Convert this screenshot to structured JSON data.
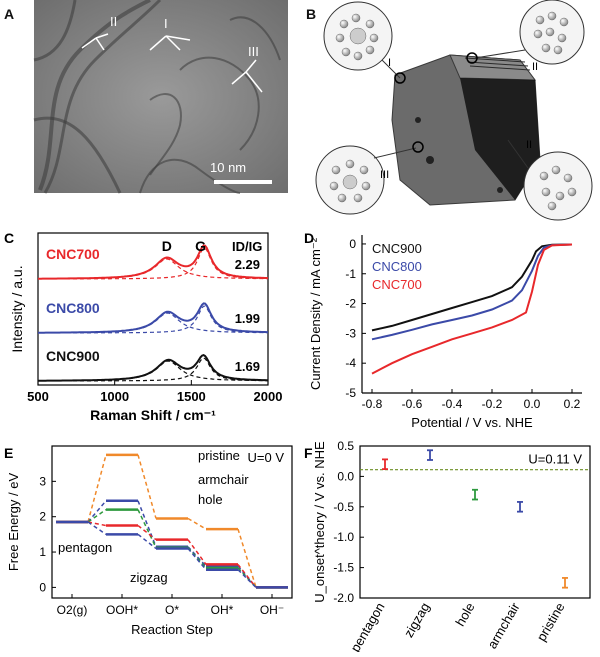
{
  "panels": {
    "A": {
      "label": "A",
      "annotations": [
        "II",
        "I",
        "III"
      ],
      "scale_bar": "10 nm"
    },
    "B": {
      "label": "B",
      "annotations": [
        "I",
        "II",
        "II",
        "III"
      ]
    }
  },
  "chart_data": [
    {
      "panel": "C",
      "type": "line",
      "xlabel": "Raman Shift / cm⁻¹",
      "ylabel": "Intensity / a.u.",
      "xlim": [
        500,
        2000
      ],
      "xticks": [
        500,
        1000,
        1500,
        2000
      ],
      "peak_labels": [
        "D",
        "G"
      ],
      "ratio_label": "ID/IG",
      "series": [
        {
          "name": "CNC700",
          "color": "#e8282b",
          "ratio": "2.29",
          "D_peak": 1340,
          "G_peak": 1585,
          "D_amp": 1.0,
          "G_amp": 1.55
        },
        {
          "name": "CNC800",
          "color": "#3b4aa8",
          "ratio": "1.99",
          "D_peak": 1345,
          "G_peak": 1585,
          "D_amp": 1.0,
          "G_amp": 1.35
        },
        {
          "name": "CNC900",
          "color": "#111111",
          "ratio": "1.69",
          "D_peak": 1350,
          "G_peak": 1580,
          "D_amp": 1.0,
          "G_amp": 1.15
        }
      ]
    },
    {
      "panel": "D",
      "type": "line",
      "xlabel": "Potential / V vs. NHE",
      "ylabel": "Current Density / mA cm⁻²",
      "xlim": [
        -0.85,
        0.25
      ],
      "ylim": [
        -5,
        0.3
      ],
      "xticks": [
        -0.8,
        -0.6,
        -0.4,
        -0.2,
        0.0,
        0.2
      ],
      "yticks": [
        0,
        -1,
        -2,
        -3,
        -4,
        -5
      ],
      "series": [
        {
          "name": "CNC900",
          "color": "#111111",
          "x": [
            -0.8,
            -0.7,
            -0.6,
            -0.5,
            -0.4,
            -0.3,
            -0.2,
            -0.1,
            -0.05,
            0.0,
            0.02,
            0.05,
            0.1,
            0.2
          ],
          "y": [
            -2.9,
            -2.75,
            -2.55,
            -2.35,
            -2.15,
            -1.95,
            -1.75,
            -1.45,
            -1.1,
            -0.55,
            -0.25,
            -0.08,
            -0.03,
            -0.02
          ]
        },
        {
          "name": "CNC800",
          "color": "#3b4aa8",
          "x": [
            -0.8,
            -0.7,
            -0.6,
            -0.5,
            -0.4,
            -0.3,
            -0.2,
            -0.1,
            -0.05,
            0.0,
            0.03,
            0.06,
            0.1,
            0.2
          ],
          "y": [
            -3.2,
            -3.05,
            -2.88,
            -2.7,
            -2.55,
            -2.4,
            -2.2,
            -1.9,
            -1.55,
            -0.9,
            -0.4,
            -0.12,
            -0.04,
            -0.02
          ]
        },
        {
          "name": "CNC700",
          "color": "#e8282b",
          "x": [
            -0.8,
            -0.7,
            -0.6,
            -0.5,
            -0.4,
            -0.3,
            -0.2,
            -0.1,
            -0.03,
            0.0,
            0.03,
            0.06,
            0.1,
            0.2
          ],
          "y": [
            -4.35,
            -4.0,
            -3.7,
            -3.45,
            -3.2,
            -3.0,
            -2.8,
            -2.55,
            -2.3,
            -1.6,
            -0.7,
            -0.2,
            -0.05,
            -0.02
          ]
        }
      ]
    },
    {
      "panel": "E",
      "type": "line",
      "xlabel": "Reaction Step",
      "ylabel": "Free Energy / eV",
      "ylim": [
        -0.3,
        4.0
      ],
      "yticks": [
        0,
        1,
        2,
        3
      ],
      "categories": [
        "O2(g)",
        "OOH*",
        "O*",
        "OH*",
        "OH⁻"
      ],
      "annotation": "U=0 V",
      "series": [
        {
          "name": "pristine",
          "color": "#f0892a",
          "values": [
            1.85,
            3.75,
            1.95,
            1.65,
            0.0
          ]
        },
        {
          "name": "armchair",
          "color": "#3b4aa8",
          "values": [
            1.85,
            2.45,
            1.15,
            0.6,
            0.0
          ]
        },
        {
          "name": "hole",
          "color": "#2e9a3e",
          "values": [
            1.85,
            2.2,
            1.12,
            0.55,
            0.0
          ]
        },
        {
          "name": "pentagon",
          "color": "#e8282b",
          "values": [
            1.85,
            1.75,
            1.35,
            0.65,
            0.0
          ]
        },
        {
          "name": "zigzag",
          "color": "#3b4aa8",
          "values": [
            1.85,
            1.5,
            1.1,
            0.5,
            0.0
          ]
        }
      ]
    },
    {
      "panel": "F",
      "type": "scatter",
      "ylabel": "U_onset^theory / V vs. NHE",
      "ylim": [
        -2.0,
        0.5
      ],
      "yticks": [
        0.5,
        0.0,
        -0.5,
        -1.0,
        -1.5,
        -2.0
      ],
      "categories": [
        "pentagon",
        "zigzag",
        "hole",
        "armchair",
        "pristine"
      ],
      "annotation": "U=0.11 V",
      "reference_line": 0.11,
      "points": [
        {
          "name": "pentagon",
          "value": 0.2,
          "err": 0.08,
          "color": "#e8282b"
        },
        {
          "name": "zigzag",
          "value": 0.35,
          "err": 0.08,
          "color": "#3b4aa8"
        },
        {
          "name": "hole",
          "value": -0.3,
          "err": 0.08,
          "color": "#2e9a3e"
        },
        {
          "name": "armchair",
          "value": -0.5,
          "err": 0.08,
          "color": "#3b4aa8"
        },
        {
          "name": "pristine",
          "value": -1.75,
          "err": 0.08,
          "color": "#f0892a"
        }
      ]
    }
  ]
}
